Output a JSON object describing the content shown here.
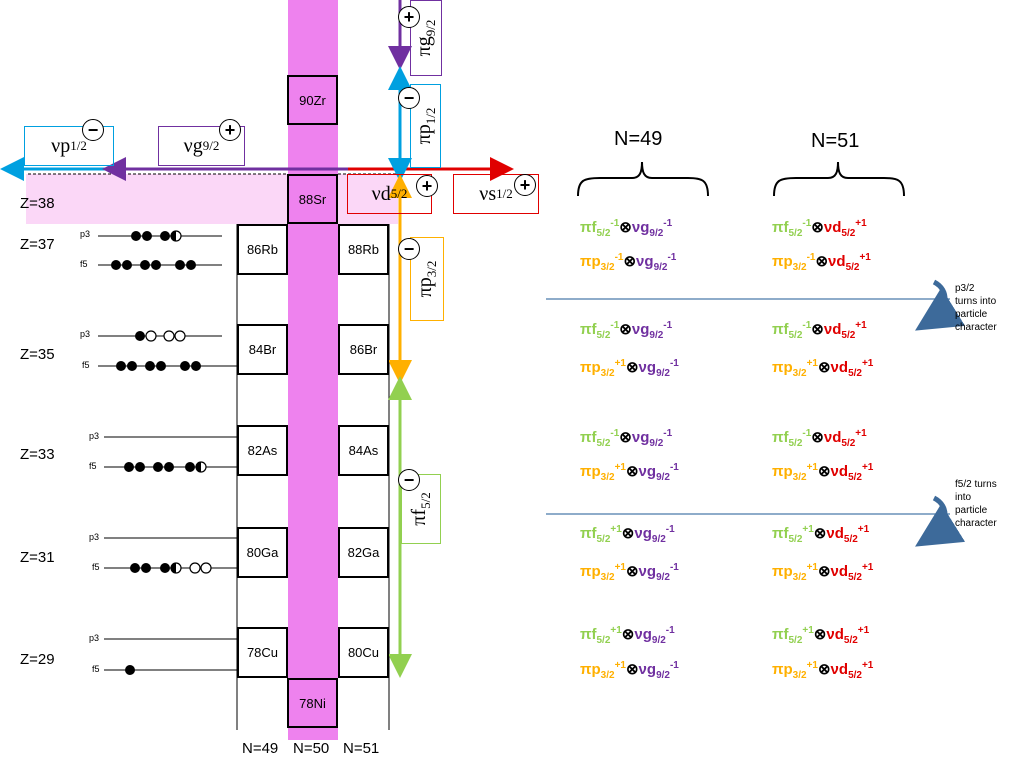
{
  "colors": {
    "pink_band": "#ee82ee",
    "z38_band": "#fbd7f7",
    "purple": "#7030a0",
    "blue": "#00a0e0",
    "red": "#e00000",
    "orange": "#ffb000",
    "green": "#92d050",
    "divider": "#4a7aaa",
    "curve_arrow": "#3d6a9a"
  },
  "z_labels": [
    "Z=38",
    "Z=37",
    "Z=35",
    "Z=33",
    "Z=31",
    "Z=29"
  ],
  "orbit_labels": {
    "p": "p3",
    "f": "f5"
  },
  "nuclei": {
    "zr90": "90Zr",
    "sr88": "88Sr",
    "rb86": "86Rb",
    "rb88": "88Rb",
    "br84": "84Br",
    "br86": "86Br",
    "as82": "82As",
    "as84": "84As",
    "ga80": "80Ga",
    "ga82": "82Ga",
    "cu78": "78Cu",
    "cu80": "80Cu",
    "ni78": "78Ni"
  },
  "n_labels": [
    "N=49",
    "N=50",
    "N=51"
  ],
  "levels": {
    "nu_p12": {
      "greek": "ν",
      "letter": "p",
      "sub": "1/2",
      "sign": "−"
    },
    "nu_g92": {
      "greek": "ν",
      "letter": "g",
      "sub": "9/2",
      "sign": "+"
    },
    "nu_d52": {
      "greek": "ν",
      "letter": "d",
      "sub": "5/2",
      "sign": "+"
    },
    "nu_s12": {
      "greek": "ν",
      "letter": "s",
      "sub": "1/2",
      "sign": "+"
    },
    "pi_g92": {
      "greek": "π",
      "letter": "g",
      "sub": "9/2",
      "sign": "+"
    },
    "pi_p12": {
      "greek": "π",
      "letter": "p",
      "sub": "1/2",
      "sign": "−"
    },
    "pi_p32": {
      "greek": "π",
      "letter": "p",
      "sub": "3/2",
      "sign": "−"
    },
    "pi_f52": {
      "greek": "π",
      "letter": "f",
      "sub": "5/2",
      "sign": "−"
    }
  },
  "headers": {
    "n49": "N=49",
    "n51": "N=51"
  },
  "config_parts": {
    "pi": "π",
    "nu": "ν",
    "otimes": "⊗",
    "f": "f",
    "p": "p",
    "g": "g",
    "d": "d",
    "s52": "5/2",
    "s32": "3/2",
    "s92": "9/2",
    "m1": "-1",
    "p1": "+1"
  },
  "config_rows": [
    {
      "f_exp": "-1",
      "p_exp": "-1"
    },
    {
      "f_exp": "-1",
      "p_exp": "+1"
    },
    {
      "f_exp": "-1",
      "p_exp": "+1"
    },
    {
      "f_exp": "+1",
      "p_exp": "+1"
    },
    {
      "f_exp": "+1",
      "p_exp": "+1"
    }
  ],
  "notes": {
    "p32": [
      "p3/2",
      "turns into",
      "particle",
      "character"
    ],
    "f52": [
      "f5/2 turns",
      "into",
      "particle",
      "character"
    ]
  }
}
